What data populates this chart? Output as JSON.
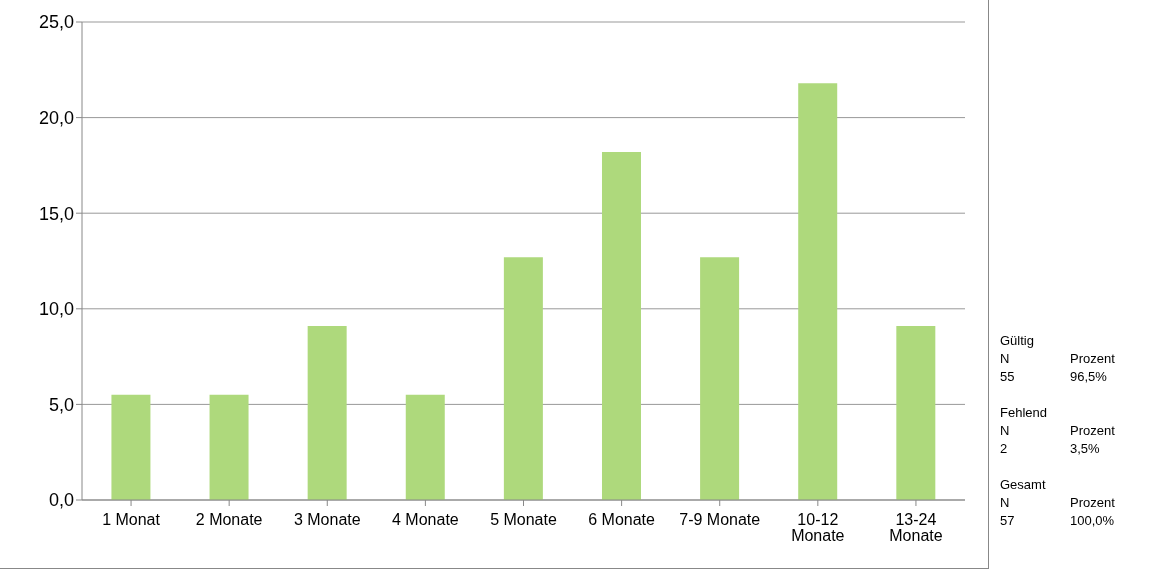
{
  "chart_data": {
    "type": "bar",
    "categories": [
      "1 Monat",
      "2 Monate",
      "3 Monate",
      "4 Monate",
      "5 Monate",
      "6 Monate",
      "7-9 Monate",
      "10-12 Monate",
      "13-24 Monate"
    ],
    "values": [
      5.5,
      5.5,
      9.1,
      5.5,
      12.7,
      18.2,
      12.7,
      21.8,
      9.1
    ],
    "color": "#aed97c",
    "ylim": [
      0,
      25
    ],
    "yticks": [
      {
        "value": 0,
        "label": "0,0"
      },
      {
        "value": 5,
        "label": "5,0"
      },
      {
        "value": 10,
        "label": "10,0"
      },
      {
        "value": 15,
        "label": "15,0"
      },
      {
        "value": 20,
        "label": "20,0"
      },
      {
        "value": 25,
        "label": "25,0"
      }
    ],
    "grid": "y",
    "annotations": [
      "Gültig",
      "N",
      "Prozent",
      "55",
      "96,5%",
      "Fehlend",
      "N",
      "Prozent",
      "2",
      "3,5%",
      "Gesamt",
      "N",
      "Prozent",
      "57",
      "100,0%"
    ]
  }
}
